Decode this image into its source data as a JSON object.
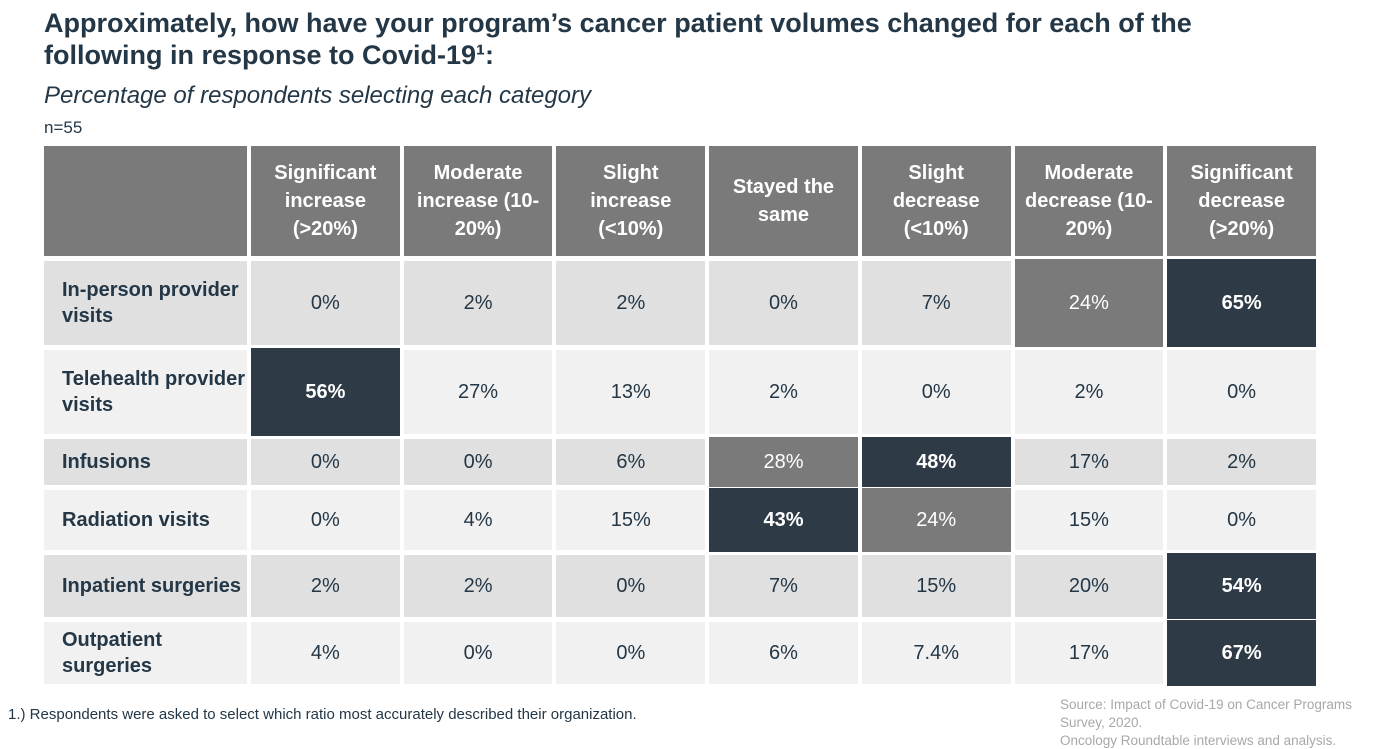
{
  "title": "Approximately, how have your program’s cancer patient volumes changed for each of the following in response to Covid-19¹:",
  "subtitle": "Percentage of respondents selecting each category",
  "sample_size": "n=55",
  "footnote": "1.) Respondents were asked to select which ratio most accurately described their organization.",
  "source": {
    "line1": "Source: Impact of Covid-19 on Cancer Programs Survey, 2020.",
    "line2": "Oncology Roundtable interviews and analysis."
  },
  "colors": {
    "header_gray": "#7a7a7a",
    "highlight_gray": "#7a7a7a",
    "highlight_dark": "#2e3b46",
    "row_light": "#e0e0e0",
    "row_lighter": "#f1f1f1",
    "text_navy": "#243746",
    "source_gray": "#a8a8a8"
  },
  "table": {
    "column_headers": [
      "Significant increase (>20%)",
      "Moderate increase (10-20%)",
      "Slight increase (<10%)",
      "Stayed the same",
      "Slight decrease (<10%)",
      "Moderate decrease (10-20%)",
      "Significant decrease (>20%)"
    ],
    "rows": [
      {
        "label": "In-person provider visits",
        "cells": [
          {
            "value": "0%",
            "style": "cell-normal"
          },
          {
            "value": "2%",
            "style": "cell-normal"
          },
          {
            "value": "2%",
            "style": "cell-normal"
          },
          {
            "value": "0%",
            "style": "cell-normal"
          },
          {
            "value": "7%",
            "style": "cell-normal"
          },
          {
            "value": "24%",
            "style": "cell-gray"
          },
          {
            "value": "65%",
            "style": "cell-dark"
          }
        ]
      },
      {
        "label": "Telehealth provider visits",
        "cells": [
          {
            "value": "56%",
            "style": "cell-dark"
          },
          {
            "value": "27%",
            "style": "cell-normal"
          },
          {
            "value": "13%",
            "style": "cell-normal"
          },
          {
            "value": "2%",
            "style": "cell-normal"
          },
          {
            "value": "0%",
            "style": "cell-normal"
          },
          {
            "value": "2%",
            "style": "cell-normal"
          },
          {
            "value": "0%",
            "style": "cell-normal"
          }
        ]
      },
      {
        "label": "Infusions",
        "cells": [
          {
            "value": "0%",
            "style": "cell-normal"
          },
          {
            "value": "0%",
            "style": "cell-normal"
          },
          {
            "value": "6%",
            "style": "cell-normal"
          },
          {
            "value": "28%",
            "style": "cell-gray"
          },
          {
            "value": "48%",
            "style": "cell-dark"
          },
          {
            "value": "17%",
            "style": "cell-normal"
          },
          {
            "value": "2%",
            "style": "cell-normal"
          }
        ]
      },
      {
        "label": "Radiation visits",
        "cells": [
          {
            "value": "0%",
            "style": "cell-normal"
          },
          {
            "value": "4%",
            "style": "cell-normal"
          },
          {
            "value": "15%",
            "style": "cell-normal"
          },
          {
            "value": "43%",
            "style": "cell-dark"
          },
          {
            "value": "24%",
            "style": "cell-gray"
          },
          {
            "value": "15%",
            "style": "cell-normal"
          },
          {
            "value": "0%",
            "style": "cell-normal"
          }
        ]
      },
      {
        "label": "Inpatient surgeries",
        "cells": [
          {
            "value": "2%",
            "style": "cell-normal"
          },
          {
            "value": "2%",
            "style": "cell-normal"
          },
          {
            "value": "0%",
            "style": "cell-normal"
          },
          {
            "value": "7%",
            "style": "cell-normal"
          },
          {
            "value": "15%",
            "style": "cell-normal"
          },
          {
            "value": "20%",
            "style": "cell-normal"
          },
          {
            "value": "54%",
            "style": "cell-dark"
          }
        ]
      },
      {
        "label": "Outpatient surgeries",
        "cells": [
          {
            "value": "4%",
            "style": "cell-normal"
          },
          {
            "value": "0%",
            "style": "cell-normal"
          },
          {
            "value": "0%",
            "style": "cell-normal"
          },
          {
            "value": "6%",
            "style": "cell-normal"
          },
          {
            "value": "7.4%",
            "style": "cell-normal"
          },
          {
            "value": "17%",
            "style": "cell-normal"
          },
          {
            "value": "67%",
            "style": "cell-dark"
          }
        ]
      }
    ]
  },
  "chart_data": {
    "type": "table",
    "title": "Approximately, how have your program’s cancer patient volumes changed for each of the following in response to Covid-19",
    "subtitle": "Percentage of respondents selecting each category",
    "n": 55,
    "categories": [
      "Significant increase (>20%)",
      "Moderate increase (10-20%)",
      "Slight increase (<10%)",
      "Stayed the same",
      "Slight decrease (<10%)",
      "Moderate decrease (10-20%)",
      "Significant decrease (>20%)"
    ],
    "series": [
      {
        "name": "In-person provider visits",
        "values": [
          0,
          2,
          2,
          0,
          7,
          24,
          65
        ]
      },
      {
        "name": "Telehealth provider visits",
        "values": [
          56,
          27,
          13,
          2,
          0,
          2,
          0
        ]
      },
      {
        "name": "Infusions",
        "values": [
          0,
          0,
          6,
          28,
          48,
          17,
          2
        ]
      },
      {
        "name": "Radiation visits",
        "values": [
          0,
          4,
          15,
          43,
          24,
          15,
          0
        ]
      },
      {
        "name": "Inpatient surgeries",
        "values": [
          2,
          2,
          0,
          7,
          15,
          20,
          54
        ]
      },
      {
        "name": "Outpatient surgeries",
        "values": [
          4,
          0,
          0,
          6,
          7.4,
          17,
          67
        ]
      }
    ],
    "units": "percent of respondents",
    "highlight_dark_cells": [
      [
        0,
        6
      ],
      [
        1,
        0
      ],
      [
        2,
        4
      ],
      [
        3,
        3
      ],
      [
        4,
        6
      ],
      [
        5,
        6
      ]
    ],
    "highlight_gray_cells": [
      [
        0,
        5
      ],
      [
        2,
        3
      ],
      [
        3,
        4
      ]
    ]
  }
}
